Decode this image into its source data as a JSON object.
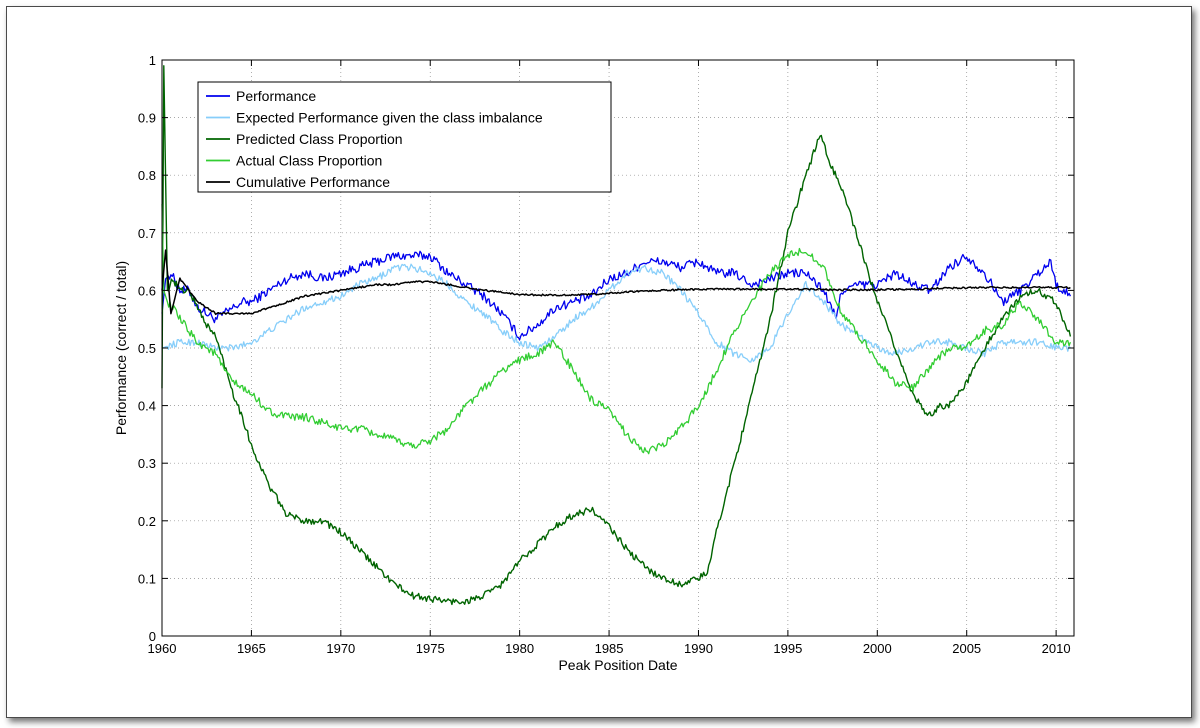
{
  "chart_data": {
    "type": "line",
    "title": "",
    "xlabel": "Peak Position Date",
    "ylabel": "Performance (correct / total)",
    "xlim": [
      1960,
      2011
    ],
    "ylim": [
      0,
      1
    ],
    "xticks": [
      1960,
      1965,
      1970,
      1975,
      1980,
      1985,
      1990,
      1995,
      2000,
      2005,
      2010
    ],
    "yticks": [
      0,
      0.1,
      0.2,
      0.3,
      0.4,
      0.5,
      0.6,
      0.7,
      0.8,
      0.9,
      1
    ],
    "ytick_labels": [
      "0",
      "0.1",
      "0.2",
      "0.3",
      "0.4",
      "0.5",
      "0.6",
      "0.7",
      "0.8",
      "0.9",
      "1"
    ],
    "grid": true,
    "grid_style": "dotted",
    "legend_position": "top-left",
    "series": [
      {
        "name": "Performance",
        "color": "#0000ee",
        "x": [
          1960.0,
          1960.2,
          1960.5,
          1961,
          1961.5,
          1962,
          1962.5,
          1963,
          1963.5,
          1964,
          1964.5,
          1965,
          1966,
          1967,
          1968,
          1969,
          1970,
          1971,
          1972,
          1973,
          1974,
          1975,
          1976,
          1977,
          1978,
          1979,
          1980,
          1981,
          1982,
          1983,
          1984,
          1985,
          1986,
          1987,
          1988,
          1989,
          1990,
          1991,
          1992,
          1993,
          1994,
          1995,
          1996,
          1997,
          1997.7,
          1998,
          1999,
          2000,
          2001,
          2002,
          2003,
          2004,
          2005,
          2006,
          2007,
          2008,
          2009,
          2009.7,
          2010,
          2010.8
        ],
        "y": [
          0.56,
          0.62,
          0.63,
          0.6,
          0.6,
          0.57,
          0.56,
          0.55,
          0.56,
          0.57,
          0.58,
          0.58,
          0.6,
          0.62,
          0.63,
          0.62,
          0.63,
          0.64,
          0.65,
          0.66,
          0.66,
          0.66,
          0.63,
          0.61,
          0.59,
          0.56,
          0.52,
          0.54,
          0.57,
          0.58,
          0.59,
          0.62,
          0.63,
          0.65,
          0.65,
          0.64,
          0.65,
          0.63,
          0.63,
          0.61,
          0.62,
          0.63,
          0.63,
          0.6,
          0.55,
          0.6,
          0.61,
          0.61,
          0.63,
          0.61,
          0.6,
          0.64,
          0.66,
          0.63,
          0.58,
          0.6,
          0.63,
          0.65,
          0.61,
          0.59
        ]
      },
      {
        "name": "Expected Performance given the class imbalance",
        "color": "#87cefa",
        "x": [
          1960.0,
          1961,
          1962,
          1963,
          1964,
          1965,
          1966,
          1967,
          1968,
          1969,
          1970,
          1971,
          1972,
          1973,
          1974,
          1975,
          1976,
          1977,
          1978,
          1979,
          1980,
          1981,
          1982,
          1983,
          1984,
          1985,
          1986,
          1987,
          1988,
          1989,
          1990,
          1991,
          1992,
          1993,
          1994,
          1995,
          1996,
          1997,
          1998,
          1999,
          2000,
          2001,
          2002,
          2003,
          2004,
          2005,
          2006,
          2007,
          2008,
          2009,
          2010,
          2010.8
        ],
        "y": [
          0.5,
          0.51,
          0.51,
          0.5,
          0.5,
          0.51,
          0.53,
          0.55,
          0.57,
          0.58,
          0.59,
          0.61,
          0.62,
          0.64,
          0.64,
          0.63,
          0.61,
          0.58,
          0.56,
          0.53,
          0.51,
          0.5,
          0.52,
          0.55,
          0.57,
          0.6,
          0.63,
          0.64,
          0.63,
          0.6,
          0.56,
          0.51,
          0.49,
          0.48,
          0.5,
          0.56,
          0.61,
          0.58,
          0.54,
          0.52,
          0.5,
          0.49,
          0.5,
          0.51,
          0.51,
          0.5,
          0.49,
          0.51,
          0.51,
          0.51,
          0.5,
          0.5
        ]
      },
      {
        "name": "Predicted Class Proportion",
        "color": "#006400",
        "x": [
          1960.0,
          1960.1,
          1960.3,
          1960.6,
          1961,
          1961.5,
          1962,
          1962.5,
          1963,
          1963.5,
          1964,
          1964.5,
          1965,
          1966,
          1967,
          1968,
          1969,
          1970,
          1971,
          1972,
          1973,
          1974,
          1975,
          1976,
          1977,
          1978,
          1979,
          1980,
          1981,
          1982,
          1983,
          1984,
          1985,
          1986,
          1987,
          1988,
          1989,
          1990,
          1990.5,
          1991,
          1992,
          1993,
          1994,
          1995,
          1996,
          1996.8,
          1997.5,
          1998,
          1999,
          2000,
          2001,
          2002,
          2002.8,
          2003.5,
          2004,
          2005,
          2006,
          2007,
          2008,
          2009,
          2010,
          2010.8
        ],
        "y": [
          0.43,
          0.99,
          0.6,
          0.62,
          0.6,
          0.6,
          0.57,
          0.54,
          0.52,
          0.47,
          0.42,
          0.38,
          0.33,
          0.26,
          0.21,
          0.2,
          0.2,
          0.18,
          0.15,
          0.12,
          0.09,
          0.07,
          0.065,
          0.06,
          0.06,
          0.07,
          0.09,
          0.13,
          0.16,
          0.19,
          0.21,
          0.22,
          0.19,
          0.15,
          0.12,
          0.1,
          0.09,
          0.1,
          0.11,
          0.18,
          0.3,
          0.42,
          0.55,
          0.7,
          0.8,
          0.87,
          0.81,
          0.78,
          0.68,
          0.58,
          0.5,
          0.42,
          0.38,
          0.4,
          0.4,
          0.44,
          0.5,
          0.55,
          0.59,
          0.6,
          0.58,
          0.52
        ]
      },
      {
        "name": "Actual Class Proportion",
        "color": "#32cd32",
        "x": [
          1960.0,
          1960.1,
          1960.3,
          1960.6,
          1961,
          1961.5,
          1962,
          1962.5,
          1963,
          1963.5,
          1964,
          1964.5,
          1965,
          1966,
          1967,
          1968,
          1969,
          1970,
          1971,
          1972,
          1973,
          1974,
          1975,
          1976,
          1977,
          1978,
          1979,
          1980,
          1981,
          1982,
          1983,
          1984,
          1985,
          1986,
          1987,
          1988,
          1989,
          1990,
          1991,
          1992,
          1993,
          1994,
          1995,
          1996,
          1997,
          1998,
          1999,
          2000,
          2001,
          2002,
          2003,
          2004,
          2005,
          2006,
          2007,
          2008,
          2009,
          2010,
          2010.8
        ],
        "y": [
          0.75,
          0.6,
          0.58,
          0.57,
          0.55,
          0.53,
          0.51,
          0.5,
          0.49,
          0.46,
          0.44,
          0.43,
          0.42,
          0.39,
          0.38,
          0.38,
          0.37,
          0.36,
          0.36,
          0.35,
          0.34,
          0.33,
          0.34,
          0.36,
          0.4,
          0.43,
          0.46,
          0.48,
          0.49,
          0.51,
          0.46,
          0.41,
          0.39,
          0.35,
          0.32,
          0.33,
          0.36,
          0.4,
          0.46,
          0.53,
          0.58,
          0.63,
          0.66,
          0.67,
          0.64,
          0.56,
          0.52,
          0.48,
          0.44,
          0.43,
          0.47,
          0.5,
          0.5,
          0.53,
          0.54,
          0.58,
          0.55,
          0.51,
          0.51
        ]
      },
      {
        "name": "Cumulative Performance",
        "color": "#000000",
        "x": [
          1960.0,
          1960.2,
          1960.5,
          1961,
          1961.5,
          1962,
          1962.5,
          1963,
          1964,
          1965,
          1966,
          1967,
          1968,
          1969,
          1970,
          1971,
          1972,
          1973,
          1974,
          1975,
          1976,
          1977,
          1978,
          1979,
          1980,
          1981,
          1982,
          1983,
          1984,
          1985,
          1986,
          1987,
          1988,
          1989,
          1990,
          1992,
          1994,
          1996,
          1998,
          2000,
          2002,
          2004,
          2006,
          2008,
          2010,
          2010.8
        ],
        "y": [
          0.6,
          0.67,
          0.56,
          0.62,
          0.6,
          0.58,
          0.57,
          0.56,
          0.56,
          0.56,
          0.57,
          0.58,
          0.59,
          0.595,
          0.6,
          0.605,
          0.61,
          0.61,
          0.615,
          0.615,
          0.61,
          0.605,
          0.6,
          0.597,
          0.593,
          0.592,
          0.592,
          0.592,
          0.593,
          0.595,
          0.597,
          0.599,
          0.6,
          0.601,
          0.602,
          0.602,
          0.602,
          0.602,
          0.601,
          0.601,
          0.602,
          0.604,
          0.605,
          0.605,
          0.605,
          0.605
        ]
      }
    ]
  }
}
